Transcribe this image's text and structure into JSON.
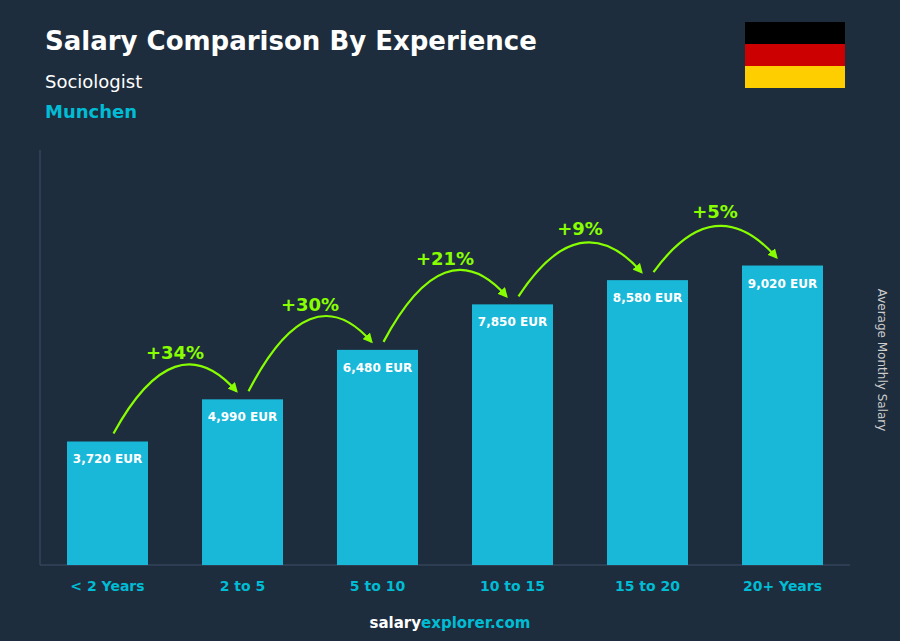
{
  "chart_data": {
    "type": "bar",
    "title": "Salary Comparison By Experience",
    "subtitle": [
      "Sociologist",
      "Munchen"
    ],
    "ylabel": "Average Monthly Salary",
    "watermark": [
      "salary",
      "explorer.com"
    ],
    "categories": [
      "< 2 Years",
      "2 to 5",
      "5 to 10",
      "10 to 15",
      "15 to 20",
      "20+ Years"
    ],
    "values": [
      3720,
      4990,
      6480,
      7850,
      8580,
      9020
    ],
    "value_labels": [
      "3,720 EUR",
      "4,990 EUR",
      "6,480 EUR",
      "7,850 EUR",
      "8,580 EUR",
      "9,020 EUR"
    ],
    "data_labels": true,
    "pct_changes": [
      34,
      30,
      21,
      9,
      5
    ],
    "pct_change_labels": [
      "+34%",
      "+30%",
      "+21%",
      "+9%",
      "+5%"
    ],
    "color": "#1ab8d8",
    "ylim": [
      0,
      12500
    ],
    "grid": false,
    "tick_labels": "x"
  }
}
